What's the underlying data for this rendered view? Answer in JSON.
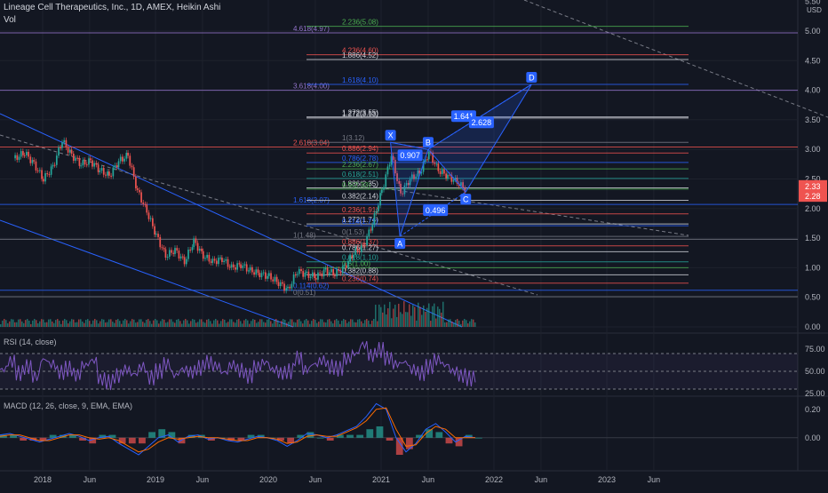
{
  "header": {
    "title": "Lineage Cell Therapeutics, Inc., 1D, AMEX, Heikin Ashi",
    "volume_label": "Vol",
    "currency": "USD"
  },
  "colors": {
    "background": "#131722",
    "grid": "#1e222d",
    "text": "#b2b5be",
    "candle_up": "#26a69a",
    "candle_down": "#ef5350",
    "fib_line": "#2962ff",
    "pattern": "#2962ff",
    "rsi_line": "#7e57c2",
    "macd_line": "#2962ff",
    "signal_line": "#ff6d00",
    "price_badge_red": "#ef5350"
  },
  "chart_data": [
    {
      "type": "line",
      "panel": "price",
      "title": "Lineage Cell Therapeutics, Inc., 1D, AMEX, Heikin Ashi",
      "y_scale": "linear",
      "ylim": [
        0,
        5.5
      ],
      "x_tick_labels": [
        "2018",
        "Jun",
        "2019",
        "Jun",
        "2020",
        "Jun",
        "2021",
        "Jun",
        "2022",
        "Jun",
        "2023",
        "Jun"
      ],
      "y_tick_labels": [
        "0.00",
        "0.50",
        "1.00",
        "1.50",
        "2.00",
        "2.50",
        "3.00",
        "3.50",
        "4.00",
        "4.50",
        "5.00",
        "5.50"
      ],
      "current_price_labels": [
        "2.33",
        "2.28"
      ],
      "series": [
        {
          "x": [
            "2017-10",
            "2017-11",
            "2017-12",
            "2018-01",
            "2018-02",
            "2018-03",
            "2018-04",
            "2018-05",
            "2018-06",
            "2018-07",
            "2018-08",
            "2018-09",
            "2018-10",
            "2018-11",
            "2018-12",
            "2019-01",
            "2019-02",
            "2019-03",
            "2019-04",
            "2019-05",
            "2019-06",
            "2019-07",
            "2019-08",
            "2019-09",
            "2019-10",
            "2019-11",
            "2019-12",
            "2020-01",
            "2020-02",
            "2020-03",
            "2020-04",
            "2020-05",
            "2020-06",
            "2020-07",
            "2020-08",
            "2020-09",
            "2020-10",
            "2020-11",
            "2020-12",
            "2021-01",
            "2021-02",
            "2021-03",
            "2021-04",
            "2021-05",
            "2021-06",
            "2021-07",
            "2021-08",
            "2021-09",
            "2021-10"
          ],
          "values": [
            2.85,
            2.95,
            2.75,
            2.5,
            2.7,
            3.15,
            2.9,
            2.75,
            2.8,
            2.65,
            2.55,
            2.8,
            2.9,
            2.3,
            1.95,
            1.55,
            1.2,
            1.3,
            1.1,
            1.45,
            1.2,
            1.1,
            1.15,
            1.0,
            1.05,
            0.95,
            0.9,
            0.85,
            0.75,
            0.62,
            0.95,
            0.88,
            0.85,
            0.95,
            0.9,
            1.0,
            1.25,
            1.35,
            1.75,
            2.3,
            2.9,
            2.25,
            2.5,
            2.6,
            2.95,
            2.65,
            2.55,
            2.45,
            2.3
          ]
        }
      ],
      "fib_levels": [
        {
          "label": "4.618(4.97)",
          "color": "#9575cd"
        },
        {
          "label": "4.236(4.60)",
          "color": "#ef5350"
        },
        {
          "label": "3.618(4.00)",
          "color": "#9575cd"
        },
        {
          "label": "2.618(3.04)",
          "color": "#ef5350"
        },
        {
          "label": "1.618(2.07)",
          "color": "#2962ff"
        },
        {
          "label": "1.272(1.74)",
          "color": "#d1d4dc"
        },
        {
          "label": "1(1.48)",
          "color": "#787b86"
        },
        {
          "label": "0.886(1.37)",
          "color": "#ef5350"
        },
        {
          "label": "0.786(1.27)",
          "color": "#d1d4dc"
        },
        {
          "label": "0.618(1.10)",
          "color": "#26a69a"
        },
        {
          "label": "0.5(1.00)",
          "color": "#4caf50"
        },
        {
          "label": "0.382(0.88)",
          "color": "#d1d4dc"
        },
        {
          "label": "0.236(0.74)",
          "color": "#ef5350"
        },
        {
          "label": "0.114(0.62)",
          "color": "#2962ff"
        },
        {
          "label": "0(0.51)",
          "color": "#787b86"
        },
        {
          "label": "2.236(5.08)",
          "color": "#4caf50"
        },
        {
          "label": "1.886(4.52)",
          "color": "#d1d4dc"
        },
        {
          "label": "1.618(4.10)",
          "color": "#2962ff"
        },
        {
          "label": "1.272(3.55)",
          "color": "#d1d4dc"
        },
        {
          "label": "1.272(3.53)",
          "color": "#d1d4dc"
        },
        {
          "label": "1(3.12)",
          "color": "#787b86"
        },
        {
          "label": "0.886(2.94)",
          "color": "#ef5350"
        },
        {
          "label": "0.786(2.78)",
          "color": "#2962ff"
        },
        {
          "label": "2.236(2.67)",
          "color": "#4caf50"
        },
        {
          "label": "0.618(2.51)",
          "color": "#26a69a"
        },
        {
          "label": "1.886(2.35)",
          "color": "#d1d4dc"
        },
        {
          "label": "0.5(2.33)",
          "color": "#4caf50"
        },
        {
          "label": "0.382(2.14)",
          "color": "#d1d4dc"
        },
        {
          "label": "0.236(1.91)",
          "color": "#ef5350"
        },
        {
          "label": "0.114(1.71)",
          "color": "#2962ff"
        },
        {
          "label": "0(1.53)",
          "color": "#787b86"
        }
      ],
      "pattern_points": [
        {
          "label": "X",
          "date": "2021-02",
          "price": 3.12
        },
        {
          "label": "A",
          "date": "2021-03",
          "price": 1.53
        },
        {
          "label": "B",
          "date": "2021-06",
          "price": 3.0
        },
        {
          "label": "C",
          "date": "2021-10",
          "price": 2.28
        },
        {
          "label": "D",
          "date": "2022-05",
          "price": 4.1
        }
      ],
      "pattern_ratios": [
        "0.907",
        "1.641",
        "2.628",
        "0.496"
      ]
    },
    {
      "type": "line",
      "panel": "rsi",
      "title": "RSI (14, close)",
      "ylim": [
        25,
        85
      ],
      "y_tick_labels": [
        "75.00",
        "50.00",
        "25.00"
      ],
      "band": [
        30,
        70
      ],
      "series": [
        {
          "name": "RSI",
          "values": [
            52,
            61,
            48,
            55,
            44,
            63,
            58,
            49,
            53,
            46,
            57,
            62,
            41,
            38,
            45,
            52,
            47,
            55,
            43,
            50,
            58,
            46,
            52,
            49,
            54,
            60,
            56,
            49,
            57,
            51,
            45,
            55,
            60,
            52,
            48,
            50,
            65,
            52,
            58,
            62,
            55,
            53,
            64,
            70,
            80,
            68,
            74,
            65,
            58,
            60,
            52,
            48,
            55,
            63,
            57,
            50,
            45,
            42,
            46
          ]
        }
      ]
    },
    {
      "type": "line",
      "panel": "macd",
      "title": "MACD (12, 26, close, 9, EMA, EMA)",
      "ylim": [
        -0.22,
        0.28
      ],
      "y_tick_labels": [
        "0.20",
        "0.00"
      ],
      "series": [
        {
          "name": "MACD",
          "values": [
            0.02,
            0.03,
            0.01,
            -0.01,
            -0.03,
            -0.01,
            0.01,
            0.03,
            0.01,
            -0.02,
            0.0,
            0.01,
            -0.04,
            -0.08,
            -0.12,
            -0.06,
            0.0,
            0.02,
            -0.03,
            0.01,
            0.02,
            -0.01,
            0.0,
            -0.02,
            -0.03,
            -0.01,
            0.01,
            0.0,
            -0.02,
            -0.06,
            -0.02,
            0.03,
            0.02,
            0.0,
            0.02,
            0.05,
            0.08,
            0.15,
            0.24,
            0.2,
            0.0,
            -0.1,
            -0.04,
            0.06,
            0.1,
            0.04,
            -0.03,
            0.01,
            0.0
          ]
        },
        {
          "name": "Signal",
          "values": [
            0.01,
            0.02,
            0.02,
            0.0,
            -0.02,
            -0.02,
            0.0,
            0.02,
            0.02,
            0.0,
            -0.01,
            0.0,
            -0.02,
            -0.06,
            -0.1,
            -0.08,
            -0.03,
            0.0,
            -0.01,
            0.0,
            0.01,
            0.0,
            0.0,
            -0.01,
            -0.02,
            -0.02,
            0.0,
            0.0,
            -0.01,
            -0.04,
            -0.03,
            0.01,
            0.02,
            0.01,
            0.01,
            0.04,
            0.07,
            0.12,
            0.2,
            0.21,
            0.06,
            -0.06,
            -0.05,
            0.03,
            0.08,
            0.06,
            0.0,
            0.0,
            0.0
          ]
        }
      ]
    }
  ]
}
